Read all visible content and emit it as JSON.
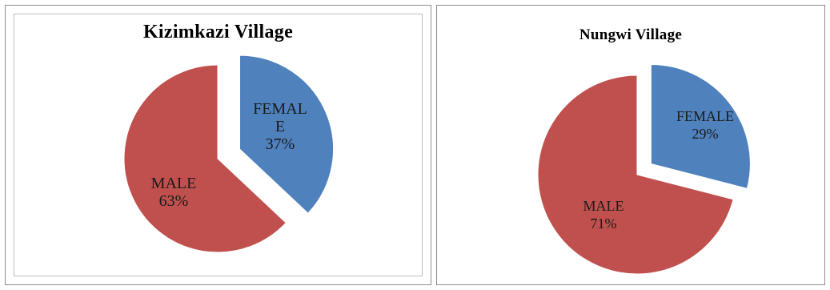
{
  "chart_data": [
    {
      "type": "pie",
      "title": "Kizimkazi Village",
      "slices": [
        {
          "label_lines": [
            "FEMAL",
            "E"
          ],
          "value": 37,
          "value_label": "37%",
          "color": "#4f81bd",
          "exploded": true
        },
        {
          "label_lines": [
            "MALE"
          ],
          "value": 63,
          "value_label": "63%",
          "color": "#c0504d",
          "exploded": false
        }
      ]
    },
    {
      "type": "pie",
      "title": "Nungwi Village",
      "slices": [
        {
          "label_lines": [
            "FEMALE"
          ],
          "value": 29,
          "value_label": "29%",
          "color": "#4f81bd",
          "exploded": true
        },
        {
          "label_lines": [
            "MALE"
          ],
          "value": 71,
          "value_label": "71%",
          "color": "#c0504d",
          "exploded": false
        }
      ]
    }
  ]
}
